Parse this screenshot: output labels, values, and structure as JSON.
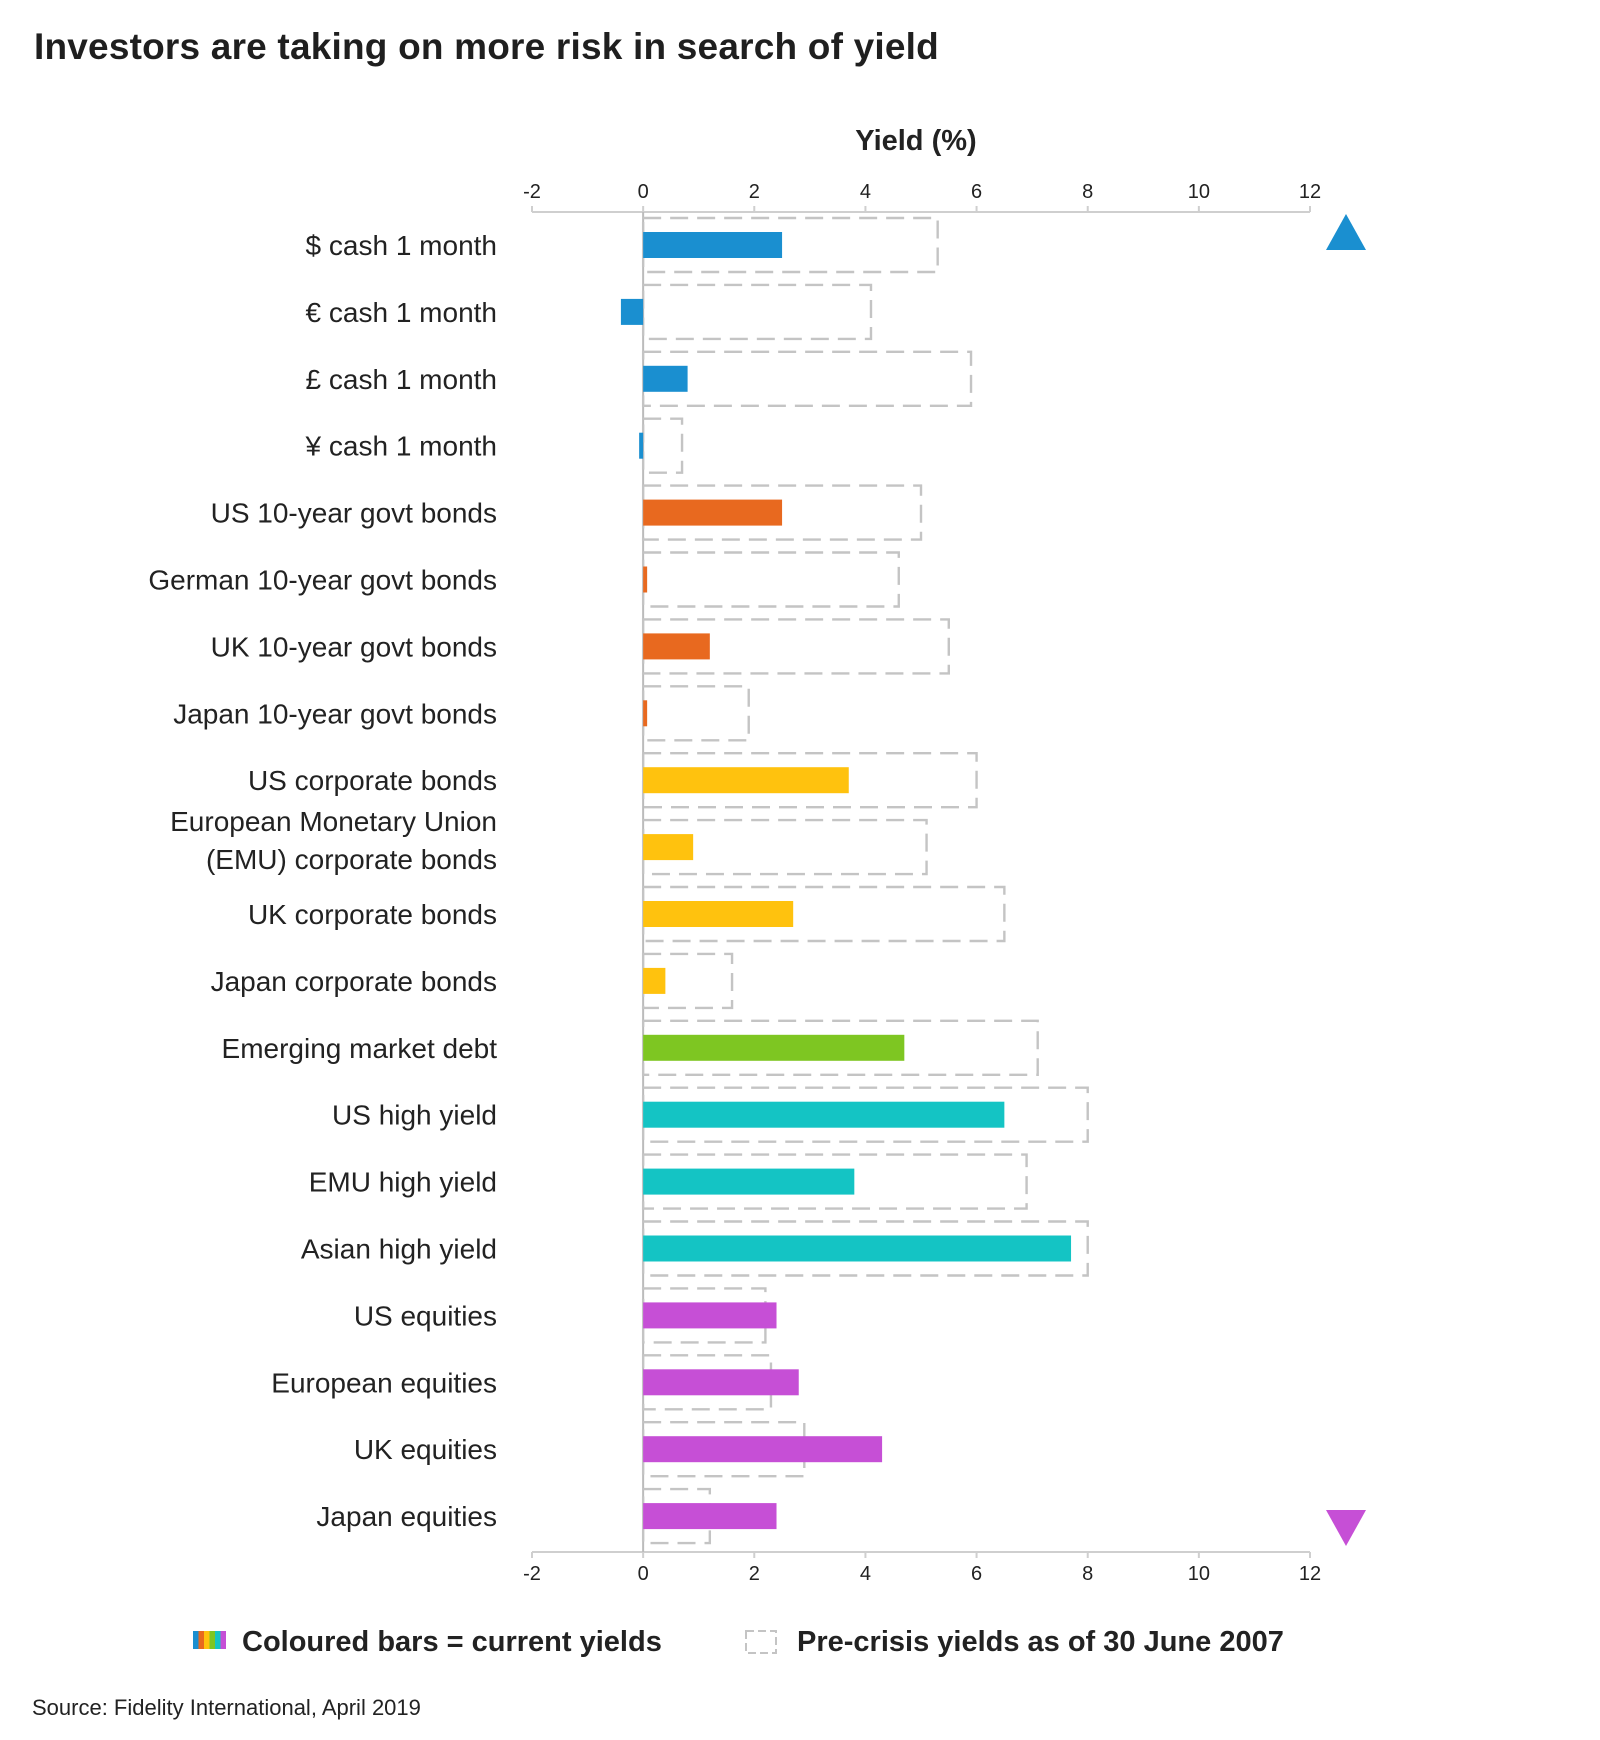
{
  "chart_data": {
    "type": "bar",
    "orientation": "horizontal",
    "title": "Investors are taking on more risk in search of yield",
    "xlabel": "Yield (%)",
    "xlim": [
      -2,
      12
    ],
    "xticks": [
      -2,
      0,
      2,
      4,
      6,
      8,
      10,
      12
    ],
    "tick_labels": [
      "-2",
      "0",
      "2",
      "4",
      "6",
      "8",
      "10",
      "12"
    ],
    "categories": [
      {
        "label": [
          "$ cash 1 month"
        ],
        "current": 2.5,
        "precrisis": 5.3,
        "group": "cash"
      },
      {
        "label": [
          "€ cash 1 month"
        ],
        "current": -0.4,
        "precrisis": 4.1,
        "group": "cash"
      },
      {
        "label": [
          "£ cash 1 month"
        ],
        "current": 0.8,
        "precrisis": 5.9,
        "group": "cash"
      },
      {
        "label": [
          "¥ cash 1 month"
        ],
        "current": -0.05,
        "precrisis": 0.7,
        "group": "cash"
      },
      {
        "label": [
          "US 10-year govt bonds"
        ],
        "current": 2.5,
        "precrisis": 5.0,
        "group": "govt"
      },
      {
        "label": [
          "German 10-year govt bonds"
        ],
        "current": 0.05,
        "precrisis": 4.6,
        "group": "govt"
      },
      {
        "label": [
          "UK 10-year govt bonds"
        ],
        "current": 1.2,
        "precrisis": 5.5,
        "group": "govt"
      },
      {
        "label": [
          "Japan 10-year govt bonds"
        ],
        "current": 0.03,
        "precrisis": 1.9,
        "group": "govt"
      },
      {
        "label": [
          "US corporate bonds"
        ],
        "current": 3.7,
        "precrisis": 6.0,
        "group": "corp"
      },
      {
        "label": [
          "European Monetary Union",
          "(EMU) corporate bonds"
        ],
        "current": 0.9,
        "precrisis": 5.1,
        "group": "corp"
      },
      {
        "label": [
          "UK corporate bonds"
        ],
        "current": 2.7,
        "precrisis": 6.5,
        "group": "corp"
      },
      {
        "label": [
          "Japan corporate bonds"
        ],
        "current": 0.4,
        "precrisis": 1.6,
        "group": "corp"
      },
      {
        "label": [
          "Emerging market debt"
        ],
        "current": 4.7,
        "precrisis": 7.1,
        "group": "emd"
      },
      {
        "label": [
          "US high yield"
        ],
        "current": 6.5,
        "precrisis": 8.0,
        "group": "hy"
      },
      {
        "label": [
          "EMU high yield"
        ],
        "current": 3.8,
        "precrisis": 6.9,
        "group": "hy"
      },
      {
        "label": [
          "Asian high yield"
        ],
        "current": 7.7,
        "precrisis": 8.0,
        "group": "hy"
      },
      {
        "label": [
          "US equities"
        ],
        "current": 2.4,
        "precrisis": 2.2,
        "group": "eq"
      },
      {
        "label": [
          "European equities"
        ],
        "current": 2.8,
        "precrisis": 2.3,
        "group": "eq"
      },
      {
        "label": [
          "UK equities"
        ],
        "current": 4.3,
        "precrisis": 2.9,
        "group": "eq"
      },
      {
        "label": [
          "Japan equities"
        ],
        "current": 2.4,
        "precrisis": 1.2,
        "group": "eq"
      }
    ],
    "group_colors": {
      "cash": "#1a8fd0",
      "govt": "#e8691f",
      "corp": "#ffc20e",
      "emd": "#7ec622",
      "hy": "#14c4c4",
      "eq": "#c64fd6"
    },
    "legend": {
      "current": "Coloured bars = current yields",
      "precrisis": "Pre-crisis yields as of 30 June 2007",
      "swatch_colors": [
        "#1a8fd0",
        "#e8691f",
        "#ffc20e",
        "#7ec622",
        "#14c4c4",
        "#c64fd6"
      ]
    },
    "arrow_colors": [
      "#1a8fd0",
      "#c64fd6"
    ],
    "source": "Source: Fidelity International, April 2019"
  }
}
